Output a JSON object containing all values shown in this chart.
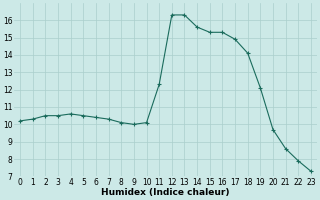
{
  "x": [
    0,
    1,
    2,
    3,
    4,
    5,
    6,
    7,
    8,
    9,
    10,
    11,
    12,
    13,
    14,
    15,
    16,
    17,
    18,
    19,
    20,
    21,
    22,
    23
  ],
  "y": [
    10.2,
    10.3,
    10.5,
    10.5,
    10.6,
    10.5,
    10.4,
    10.3,
    10.1,
    10.0,
    10.1,
    12.3,
    16.3,
    16.3,
    15.6,
    15.3,
    15.3,
    14.9,
    14.1,
    12.1,
    9.7,
    8.6,
    7.9,
    7.3
  ],
  "line_color": "#1a6b5c",
  "marker": "+",
  "marker_size": 3,
  "bg_color": "#cce9e7",
  "grid_color": "#aacfcc",
  "xlabel": "Humidex (Indice chaleur)",
  "xlim": [
    -0.5,
    23.5
  ],
  "ylim": [
    7,
    17
  ],
  "yticks": [
    7,
    8,
    9,
    10,
    11,
    12,
    13,
    14,
    15,
    16
  ],
  "xticks": [
    0,
    1,
    2,
    3,
    4,
    5,
    6,
    7,
    8,
    9,
    10,
    11,
    12,
    13,
    14,
    15,
    16,
    17,
    18,
    19,
    20,
    21,
    22,
    23
  ],
  "label_fontsize": 6.5,
  "tick_fontsize": 5.5
}
